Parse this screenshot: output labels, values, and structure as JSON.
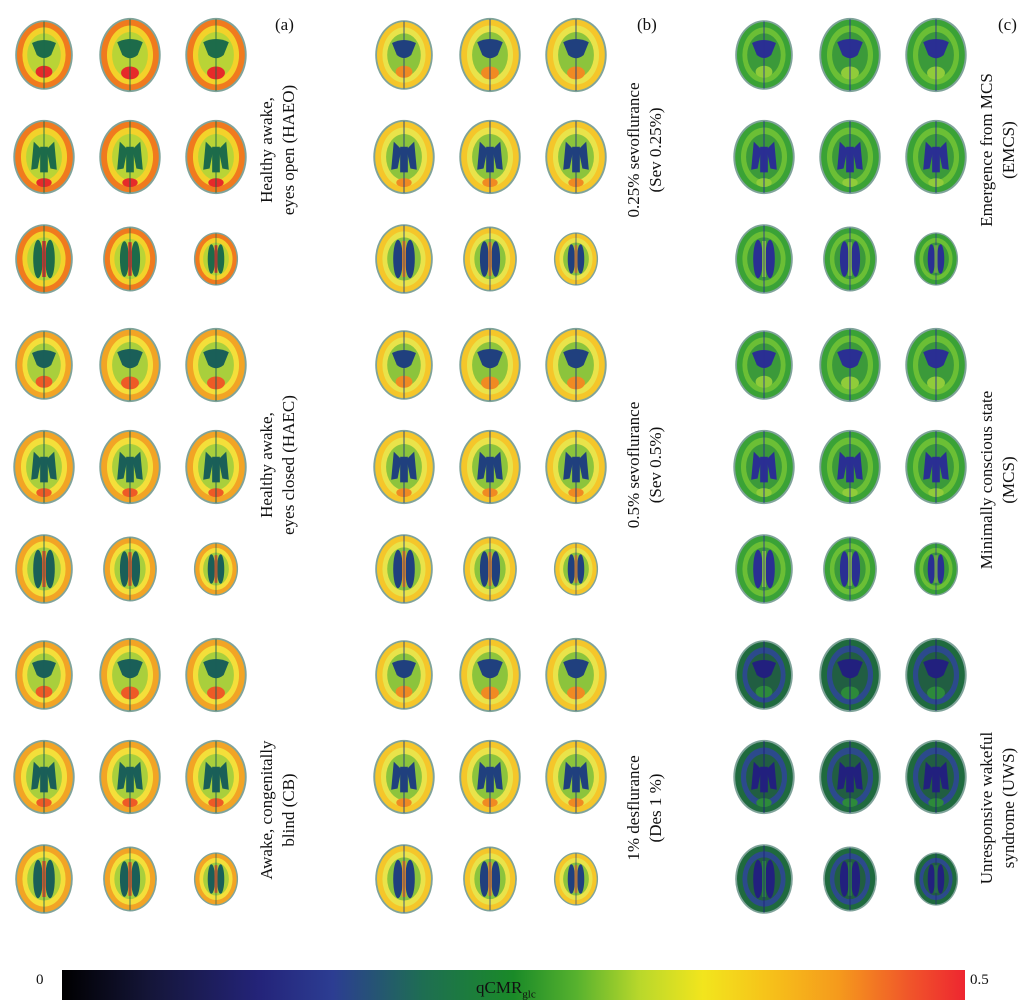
{
  "panels": [
    {
      "letter": "(a)",
      "conditions": [
        {
          "label": [
            "Healthy awake,",
            "eyes open (HAEO)"
          ],
          "palette": "hot"
        },
        {
          "label": [
            "Healthy awake,",
            "eyes closed (HAEC)"
          ],
          "palette": "warm"
        },
        {
          "label": [
            "Awake, congenitally",
            "blind (CB)"
          ],
          "palette": "warm"
        }
      ]
    },
    {
      "letter": "(b)",
      "conditions": [
        {
          "label": [
            "0.25% sevoflurance",
            "(Sev 0.25%)"
          ],
          "palette": "mid"
        },
        {
          "label": [
            "0.5% sevoflurance",
            "(Sev 0.5%)"
          ],
          "palette": "mid"
        },
        {
          "label": [
            "1% desflurance",
            "(Des 1 %)"
          ],
          "palette": "mid"
        }
      ]
    },
    {
      "letter": "(c)",
      "conditions": [
        {
          "label": [
            "Emergence from MCS",
            "(EMCS)"
          ],
          "palette": "green"
        },
        {
          "label": [
            "Minimally conscious state",
            "(MCS)"
          ],
          "palette": "green"
        },
        {
          "label": [
            "Unresponsive wakeful",
            "syndrome (UWS)"
          ],
          "palette": "blue"
        }
      ]
    }
  ],
  "colorbar": {
    "min_label": "0",
    "max_label": "0.5",
    "title": "qCMR",
    "title_sub": "glc",
    "stops": [
      "#000000",
      "#24247a",
      "#1a8a28",
      "#f2e51d",
      "#f59a1c",
      "#ee2630"
    ]
  },
  "palettes": {
    "hot": {
      "cortex": "#f07a1e",
      "inner": "#f3d22a",
      "matter": "#b9d436",
      "core": "#1d6b4a",
      "hot": "#e62a2a"
    },
    "warm": {
      "cortex": "#f2a425",
      "inner": "#f4df3a",
      "matter": "#a9cf3c",
      "core": "#1a5f58",
      "hot": "#ee5a26"
    },
    "mid": {
      "cortex": "#f5c62a",
      "inner": "#e9e34a",
      "matter": "#8cc43c",
      "core": "#20407e",
      "hot": "#f08a22"
    },
    "green": {
      "cortex": "#3aa236",
      "inner": "#6bbf35",
      "matter": "#3b9a3a",
      "core": "#2a2f93",
      "hot": "#90cc3a"
    },
    "blue": {
      "cortex": "#1f6a3e",
      "inner": "#2c4a8c",
      "matter": "#215e42",
      "core": "#22207e",
      "hot": "#2d8a3a"
    }
  }
}
